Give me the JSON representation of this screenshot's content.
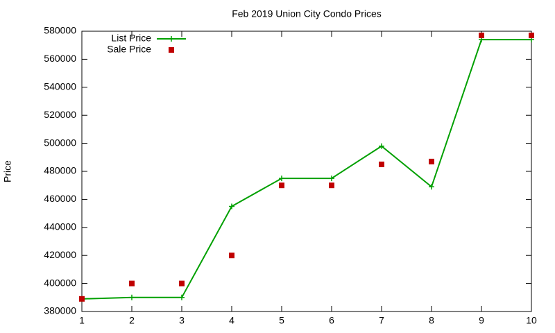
{
  "chart_data": {
    "type": "line",
    "title": "Feb 2019 Union City Condo Prices",
    "y_label": "Price",
    "x": [
      1,
      2,
      3,
      4,
      5,
      6,
      7,
      8,
      9,
      10
    ],
    "series": [
      {
        "name": "List Price",
        "color": "#00a000",
        "style": "linespoints",
        "values": [
          389000,
          390000,
          390000,
          455000,
          475000,
          475000,
          498000,
          469000,
          574000,
          574000
        ]
      },
      {
        "name": "Sale Price",
        "color": "#c00000",
        "style": "points",
        "values": [
          389000,
          400000,
          400000,
          420000,
          470000,
          470000,
          485000,
          487000,
          577000,
          577000
        ]
      }
    ],
    "xlim": [
      1,
      10
    ],
    "xticks": [
      1,
      2,
      3,
      4,
      5,
      6,
      7,
      8,
      9,
      10
    ],
    "ylim": [
      380000,
      580000
    ],
    "yticks": [
      380000,
      400000,
      420000,
      440000,
      460000,
      480000,
      500000,
      520000,
      540000,
      560000,
      580000
    ],
    "legend": "top-left"
  }
}
